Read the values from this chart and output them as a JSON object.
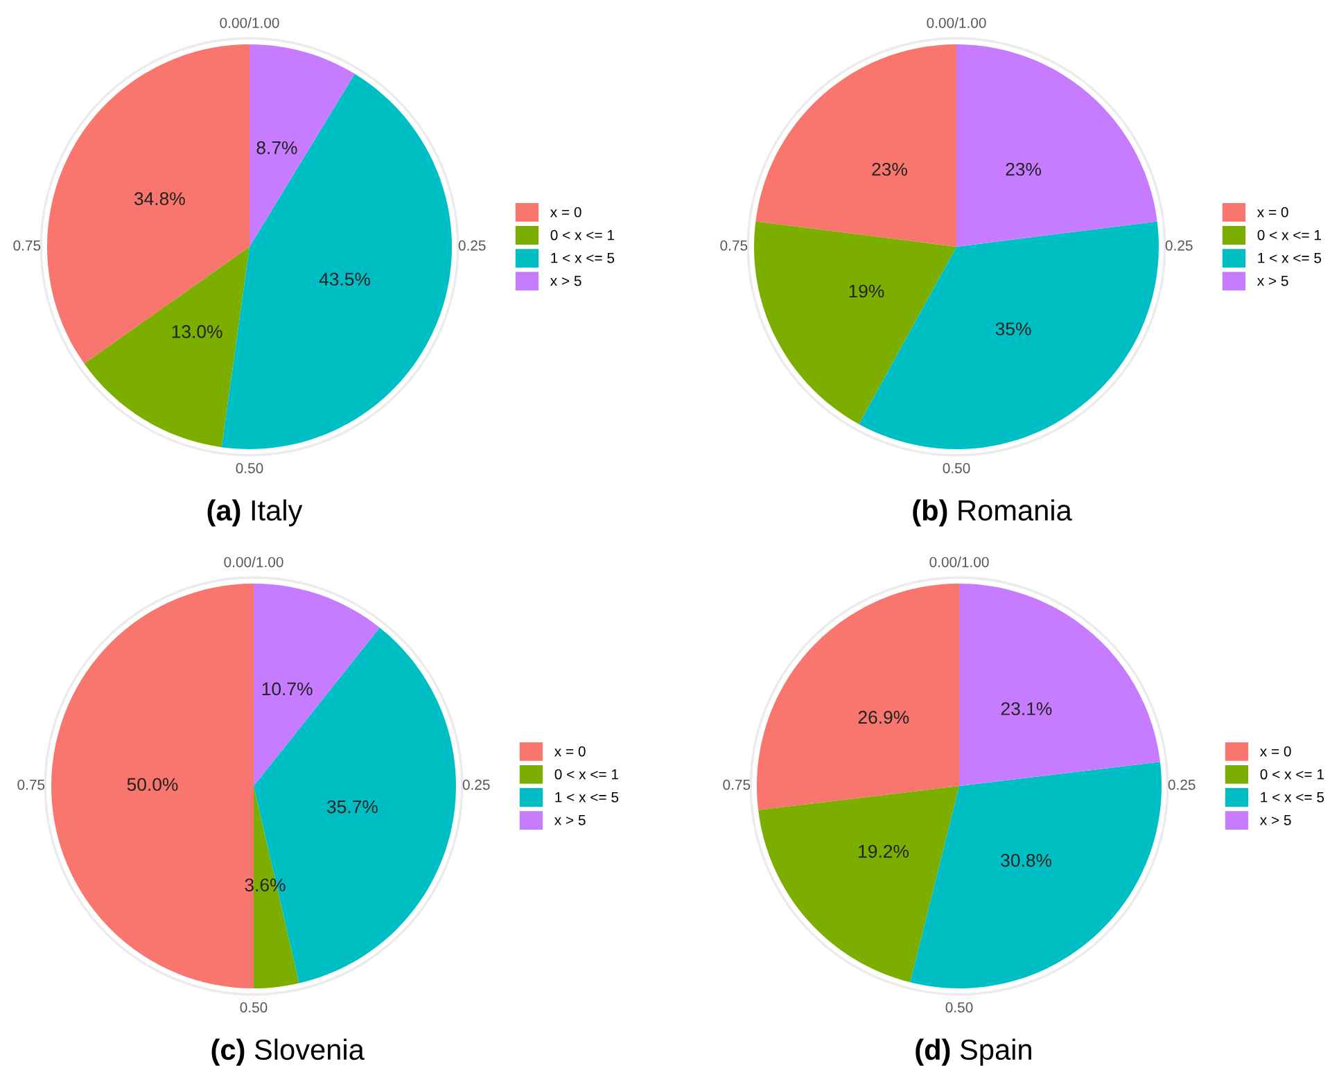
{
  "chart_data": [
    {
      "type": "pie",
      "title": "(a) Italy",
      "categories": [
        "x = 0",
        "0 < x <= 1",
        "1 < x <= 5",
        "x > 5"
      ],
      "values": [
        34.8,
        13.0,
        43.5,
        8.7
      ],
      "value_labels": [
        "34.8%",
        "13.0%",
        "43.5%",
        "8.7%"
      ],
      "colors": [
        "#f8766d",
        "#7cae00",
        "#00bfc4",
        "#c77cff"
      ],
      "legend": "right",
      "annotations": [
        "0.00/1.00",
        "0.25",
        "0.50",
        "0.75"
      ]
    },
    {
      "type": "pie",
      "title": "(b) Romania",
      "categories": [
        "x = 0",
        "0 < x <= 1",
        "1 < x <= 5",
        "x > 5"
      ],
      "values": [
        23,
        19,
        35,
        23
      ],
      "value_labels": [
        "23%",
        "19%",
        "35%",
        "23%"
      ],
      "colors": [
        "#f8766d",
        "#7cae00",
        "#00bfc4",
        "#c77cff"
      ],
      "legend": "right",
      "annotations": [
        "0.00/1.00",
        "0.25",
        "0.50",
        "0.75"
      ]
    },
    {
      "type": "pie",
      "title": "(c) Slovenia",
      "categories": [
        "x = 0",
        "0 < x <= 1",
        "1 < x <= 5",
        "x > 5"
      ],
      "values": [
        50.0,
        3.6,
        35.7,
        10.7
      ],
      "value_labels": [
        "50.0%",
        "3.6%",
        "35.7%",
        "10.7%"
      ],
      "colors": [
        "#f8766d",
        "#7cae00",
        "#00bfc4",
        "#c77cff"
      ],
      "legend": "right",
      "annotations": [
        "0.00/1.00",
        "0.25",
        "0.50",
        "0.75"
      ]
    },
    {
      "type": "pie",
      "title": "(d) Spain",
      "categories": [
        "x = 0",
        "0 < x <= 1",
        "1 < x <= 5",
        "x > 5"
      ],
      "values": [
        26.9,
        19.2,
        30.8,
        23.1
      ],
      "value_labels": [
        "26.9%",
        "19.2%",
        "30.8%",
        "23.1%"
      ],
      "colors": [
        "#f8766d",
        "#7cae00",
        "#00bfc4",
        "#c77cff"
      ],
      "legend": "right",
      "annotations": [
        "0.00/1.00",
        "0.25",
        "0.50",
        "0.75"
      ]
    }
  ]
}
